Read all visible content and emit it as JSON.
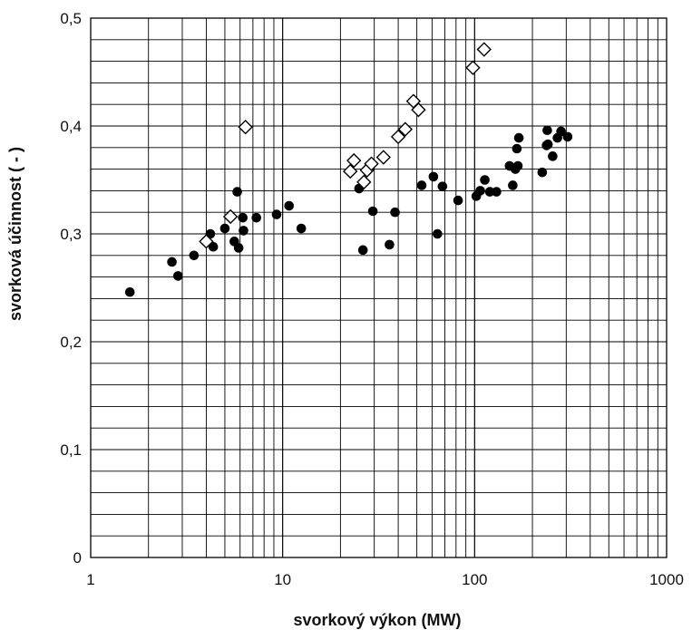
{
  "chart_data": {
    "type": "scatter",
    "xlabel": "svorkový výkon (MW)",
    "ylabel": "svorková účinnost ( - )",
    "x_scale": "log",
    "xlim": [
      1,
      1000
    ],
    "ylim": [
      0,
      0.5
    ],
    "x_ticks": [
      "1",
      "10",
      "100",
      "1000"
    ],
    "y_ticks": [
      "0",
      "0,1",
      "0,2",
      "0,3",
      "0,4",
      "0,5"
    ],
    "grid": true,
    "legend": "none",
    "series": [
      {
        "marker": "filled-circle",
        "color": "#000000",
        "points": [
          [
            1.6,
            0.246
          ],
          [
            2.65,
            0.274
          ],
          [
            2.85,
            0.261
          ],
          [
            3.45,
            0.28
          ],
          [
            4.2,
            0.3
          ],
          [
            4.35,
            0.288
          ],
          [
            5.0,
            0.305
          ],
          [
            5.6,
            0.293
          ],
          [
            5.8,
            0.339
          ],
          [
            5.9,
            0.287
          ],
          [
            6.2,
            0.315
          ],
          [
            6.25,
            0.303
          ],
          [
            7.3,
            0.315
          ],
          [
            9.3,
            0.318
          ],
          [
            10.8,
            0.326
          ],
          [
            12.5,
            0.305
          ],
          [
            25.0,
            0.342
          ],
          [
            26.2,
            0.285
          ],
          [
            29.5,
            0.321
          ],
          [
            36.0,
            0.29
          ],
          [
            38.5,
            0.32
          ],
          [
            53.0,
            0.345
          ],
          [
            61.0,
            0.353
          ],
          [
            64.0,
            0.3
          ],
          [
            68.0,
            0.344
          ],
          [
            82.0,
            0.331
          ],
          [
            102.0,
            0.335
          ],
          [
            107.0,
            0.34
          ],
          [
            113.0,
            0.35
          ],
          [
            120.0,
            0.339
          ],
          [
            130.0,
            0.339
          ],
          [
            152.0,
            0.363
          ],
          [
            158.0,
            0.345
          ],
          [
            163.0,
            0.36
          ],
          [
            166.0,
            0.379
          ],
          [
            168.0,
            0.363
          ],
          [
            170.0,
            0.389
          ],
          [
            225.0,
            0.357
          ],
          [
            237.0,
            0.382
          ],
          [
            239.0,
            0.396
          ],
          [
            241.0,
            0.383
          ],
          [
            255.0,
            0.372
          ],
          [
            270.0,
            0.389
          ],
          [
            282.0,
            0.395
          ],
          [
            305.0,
            0.39
          ]
        ]
      },
      {
        "marker": "open-diamond",
        "color": "#000000",
        "points": [
          [
            4.0,
            0.293
          ],
          [
            5.35,
            0.316
          ],
          [
            6.4,
            0.399
          ],
          [
            22.5,
            0.358
          ],
          [
            23.5,
            0.368
          ],
          [
            26.5,
            0.348
          ],
          [
            27.5,
            0.359
          ],
          [
            29.0,
            0.365
          ],
          [
            33.5,
            0.371
          ],
          [
            40.0,
            0.39
          ],
          [
            43.5,
            0.397
          ],
          [
            48.0,
            0.423
          ],
          [
            51.0,
            0.415
          ],
          [
            98.0,
            0.454
          ],
          [
            112.0,
            0.471
          ]
        ]
      }
    ]
  }
}
